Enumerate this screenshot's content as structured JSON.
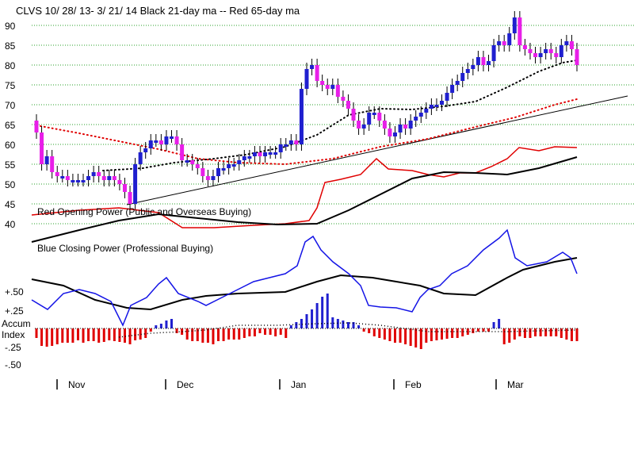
{
  "chart_data": {
    "type": "candlestick",
    "title": "CLVS   10/ 28/ 13-  3/ 21/ 14     Black 21-day ma --   Red 65-day ma",
    "price_axis": {
      "ticks": [
        90,
        85,
        80,
        75,
        70,
        65,
        60,
        55,
        50,
        45,
        40
      ],
      "range": [
        40,
        92
      ]
    },
    "lower_axis": {
      "tick_labels": [
        "+.50",
        "+.25",
        "Accum",
        "Index",
        "-.25",
        "-.50"
      ]
    },
    "month_labels": [
      "Nov",
      "Dec",
      "Jan",
      "Feb",
      "Mar"
    ],
    "panel_labels": {
      "red": "Red Opening Power (Public and Overseas Buying)",
      "blue": "Blue Closing Power (Professional Buying)"
    },
    "colors": {
      "up_candle": "#1f1fcf",
      "down_candle": "#e81ee8",
      "wick": "#000000",
      "red_line": "#e00000",
      "blue_line": "#1414e6",
      "black_line": "#000000",
      "grid": "#2aa02a",
      "accum_pos": "#1f1fcf",
      "accum_neg": "#e00000"
    },
    "close_series": [
      63,
      55,
      57,
      53,
      52,
      52,
      51,
      51,
      51,
      51,
      52,
      53,
      52,
      51,
      52,
      51,
      50,
      48,
      45,
      55,
      58,
      59,
      61,
      61,
      60,
      62,
      62,
      60,
      56,
      56,
      55,
      54,
      52,
      51,
      52,
      54,
      54,
      55,
      55,
      56,
      57,
      57,
      58,
      57,
      58,
      58,
      58,
      60,
      60,
      61,
      60,
      74,
      79,
      80,
      76,
      75,
      74,
      75,
      72,
      71,
      69,
      66,
      64,
      65,
      68,
      68,
      66,
      64,
      62,
      63,
      65,
      64,
      66,
      67,
      68,
      69,
      70,
      70,
      71,
      73,
      75,
      76,
      78,
      79,
      80,
      82,
      80,
      81,
      85,
      86,
      85,
      88,
      92,
      85,
      84,
      83,
      82,
      83,
      84,
      83,
      82,
      85,
      86,
      84,
      80
    ],
    "ma21_values": [
      51,
      51,
      51,
      51,
      51,
      52,
      53,
      53,
      54,
      55,
      55,
      56,
      56,
      56,
      56,
      56,
      56,
      56,
      56,
      56,
      56,
      57,
      57,
      58,
      59,
      60,
      61,
      62,
      63,
      64,
      65,
      66,
      67,
      68,
      69,
      70,
      70,
      70,
      70,
      70,
      70,
      71,
      71,
      72,
      73,
      74,
      75,
      76,
      77,
      78,
      79,
      80,
      81,
      81,
      82
    ]
  },
  "lines": {
    "black_ma_upper": [
      [
        40,
        305
      ],
      [
        100,
        290
      ],
      [
        150,
        278
      ],
      [
        200,
        270
      ],
      [
        250,
        275
      ],
      [
        300,
        280
      ],
      [
        350,
        283
      ],
      [
        400,
        282
      ],
      [
        440,
        265
      ],
      [
        480,
        245
      ],
      [
        520,
        225
      ],
      [
        560,
        217
      ],
      [
        600,
        218
      ],
      [
        640,
        220
      ],
      [
        680,
        212
      ],
      [
        728,
        198
      ]
    ],
    "red_opening": [
      [
        40,
        271
      ],
      [
        100,
        265
      ],
      [
        150,
        262
      ],
      [
        200,
        268
      ],
      [
        230,
        287
      ],
      [
        270,
        287
      ],
      [
        320,
        284
      ],
      [
        360,
        282
      ],
      [
        390,
        278
      ],
      [
        400,
        262
      ],
      [
        410,
        230
      ],
      [
        430,
        226
      ],
      [
        455,
        220
      ],
      [
        475,
        200
      ],
      [
        490,
        213
      ],
      [
        520,
        215
      ],
      [
        540,
        220
      ],
      [
        560,
        223
      ],
      [
        580,
        218
      ],
      [
        600,
        218
      ],
      [
        620,
        210
      ],
      [
        640,
        200
      ],
      [
        655,
        186
      ],
      [
        680,
        190
      ],
      [
        700,
        185
      ],
      [
        728,
        186
      ]
    ],
    "blue_closing": [
      [
        40,
        378
      ],
      [
        60,
        390
      ],
      [
        80,
        370
      ],
      [
        100,
        365
      ],
      [
        120,
        370
      ],
      [
        140,
        380
      ],
      [
        155,
        410
      ],
      [
        165,
        385
      ],
      [
        185,
        375
      ],
      [
        200,
        358
      ],
      [
        210,
        350
      ],
      [
        225,
        370
      ],
      [
        250,
        380
      ],
      [
        260,
        385
      ],
      [
        280,
        375
      ],
      [
        300,
        365
      ],
      [
        320,
        355
      ],
      [
        340,
        350
      ],
      [
        360,
        345
      ],
      [
        375,
        335
      ],
      [
        385,
        305
      ],
      [
        395,
        298
      ],
      [
        405,
        315
      ],
      [
        420,
        330
      ],
      [
        440,
        345
      ],
      [
        455,
        360
      ],
      [
        465,
        385
      ],
      [
        480,
        387
      ],
      [
        500,
        388
      ],
      [
        520,
        393
      ],
      [
        530,
        375
      ],
      [
        540,
        365
      ],
      [
        555,
        360
      ],
      [
        570,
        345
      ],
      [
        590,
        335
      ],
      [
        610,
        315
      ],
      [
        630,
        300
      ],
      [
        640,
        290
      ],
      [
        650,
        325
      ],
      [
        665,
        335
      ],
      [
        690,
        330
      ],
      [
        710,
        318
      ],
      [
        720,
        325
      ],
      [
        728,
        345
      ]
    ],
    "black_upper_cp": [
      [
        40,
        352
      ],
      [
        80,
        360
      ],
      [
        120,
        378
      ],
      [
        160,
        388
      ],
      [
        190,
        390
      ],
      [
        230,
        378
      ],
      [
        260,
        373
      ],
      [
        300,
        370
      ],
      [
        360,
        368
      ],
      [
        400,
        355
      ],
      [
        430,
        347
      ],
      [
        470,
        350
      ],
      [
        500,
        355
      ],
      [
        530,
        360
      ],
      [
        560,
        370
      ],
      [
        600,
        372
      ],
      [
        640,
        350
      ],
      [
        660,
        340
      ],
      [
        700,
        330
      ],
      [
        728,
        325
      ]
    ],
    "trendline": [
      [
        160,
        258
      ],
      [
        792,
        121
      ]
    ],
    "dotted_red_ma65": [
      [
        46,
        158
      ],
      [
        100,
        168
      ],
      [
        200,
        188
      ],
      [
        250,
        200
      ],
      [
        300,
        205
      ],
      [
        360,
        207
      ],
      [
        420,
        200
      ],
      [
        480,
        185
      ],
      [
        540,
        175
      ],
      [
        600,
        160
      ],
      [
        650,
        148
      ],
      [
        700,
        132
      ],
      [
        728,
        125
      ]
    ],
    "dotted_black_ma21": [
      [
        130,
        215
      ],
      [
        180,
        212
      ],
      [
        220,
        205
      ],
      [
        270,
        200
      ],
      [
        310,
        195
      ],
      [
        360,
        185
      ],
      [
        400,
        170
      ],
      [
        440,
        145
      ],
      [
        480,
        137
      ],
      [
        520,
        138
      ],
      [
        560,
        134
      ],
      [
        600,
        128
      ],
      [
        640,
        110
      ],
      [
        680,
        90
      ],
      [
        710,
        79
      ],
      [
        728,
        76
      ]
    ]
  },
  "accum_bars": [
    -12,
    -22,
    -23,
    -22,
    -20,
    -18,
    -18,
    -18,
    -15,
    -18,
    -16,
    -16,
    -18,
    -17,
    -15,
    -16,
    -17,
    -18,
    -20,
    -15,
    -14,
    -12,
    -4,
    4,
    6,
    10,
    12,
    -6,
    -8,
    -14,
    -16,
    -16,
    -18,
    -18,
    -20,
    -16,
    -16,
    -14,
    -14,
    -14,
    -12,
    -10,
    -10,
    -6,
    -8,
    -8,
    -10,
    -8,
    -12,
    4,
    8,
    12,
    18,
    24,
    32,
    40,
    44,
    14,
    12,
    10,
    8,
    8,
    4,
    -4,
    -6,
    -10,
    -12,
    -14,
    -16,
    -18,
    -18,
    -20,
    -22,
    -24,
    -26,
    -18,
    -16,
    -15,
    -14,
    -13,
    -12,
    -12,
    -10,
    -8,
    -6,
    -4,
    -4,
    -4,
    8,
    12,
    -20,
    -18,
    -14,
    -10,
    -12,
    -12,
    -10,
    -10,
    -10,
    -10,
    -10,
    -12,
    -14,
    -16,
    -16
  ]
}
